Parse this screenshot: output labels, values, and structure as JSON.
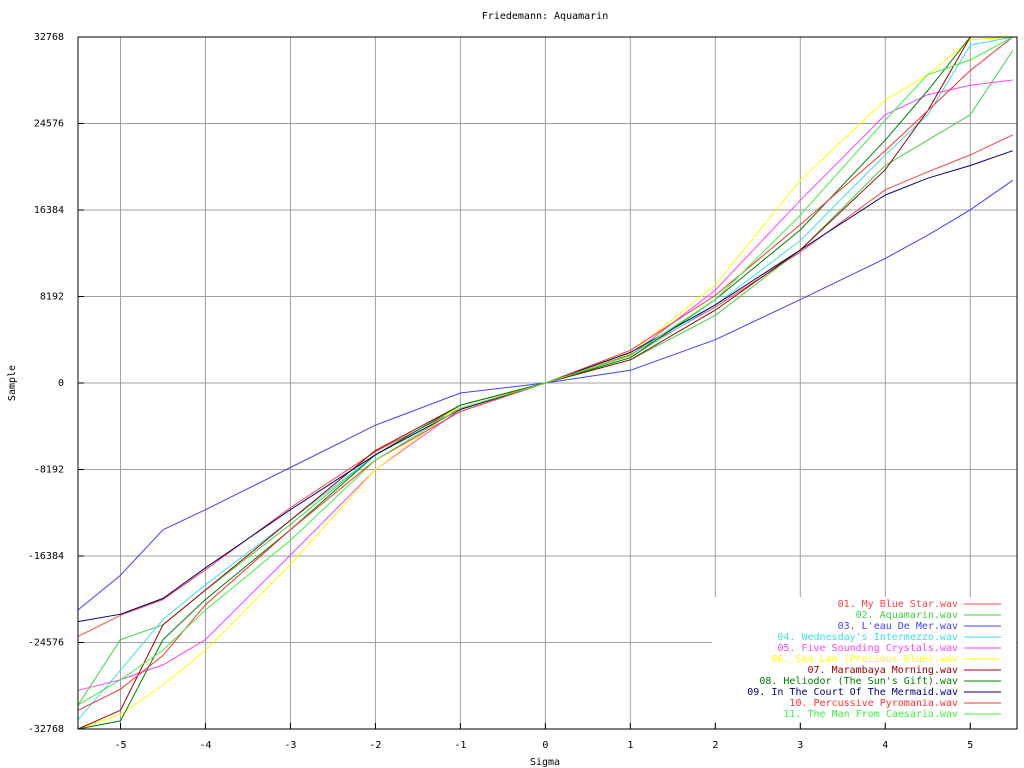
{
  "chart_data": {
    "type": "line",
    "title": "Friedemann: Aquamarin",
    "x_label": "Sigma",
    "y_label": "Sample",
    "x": [
      -5.5,
      -5,
      -4.5,
      -4,
      -3,
      -2,
      -1,
      0,
      1,
      2,
      3,
      4,
      4.5,
      5,
      5.5
    ],
    "xlim": [
      -5.5,
      5.55
    ],
    "xticks": [
      -5,
      -4,
      -3,
      -2,
      -1,
      0,
      1,
      2,
      3,
      4,
      5
    ],
    "ylim": [
      -32768,
      32768
    ],
    "yticks": [
      -32768,
      -24576,
      -16384,
      -8192,
      0,
      8192,
      16384,
      24576,
      32768
    ],
    "grid": true,
    "legend": "bottom right",
    "series": [
      {
        "name": "01. My Blue Star.wav",
        "color": "#ff4040",
        "values": [
          -24000,
          -22000,
          -20500,
          -17700,
          -11800,
          -6500,
          -2400,
          0,
          2700,
          7200,
          12400,
          18300,
          20000,
          21600,
          23500
        ]
      },
      {
        "name": "02. Aquamarin.wav",
        "color": "#40d040",
        "values": [
          -30500,
          -24300,
          -22900,
          -19600,
          -13400,
          -6800,
          -2100,
          0,
          2200,
          6400,
          12600,
          20600,
          23000,
          25400,
          31500
        ]
      },
      {
        "name": "03. L'eau De Mer.wav",
        "color": "#4040ff",
        "values": [
          -21500,
          -18200,
          -13900,
          -12000,
          -8000,
          -4000,
          -950,
          0,
          1200,
          4100,
          7900,
          11800,
          14000,
          16400,
          19200
        ]
      },
      {
        "name": "04. Wednesday's Intermezzo.wav",
        "color": "#40e0e0",
        "values": [
          -31900,
          -27200,
          -22400,
          -19100,
          -13000,
          -6800,
          -2100,
          0,
          2400,
          7400,
          13500,
          21600,
          25400,
          32000,
          32768
        ]
      },
      {
        "name": "05. Five Sounding Crystals.wav",
        "color": "#ff40ff",
        "values": [
          -29100,
          -28100,
          -26700,
          -24300,
          -16300,
          -8200,
          -2500,
          0,
          2600,
          8800,
          17300,
          25400,
          27300,
          28200,
          28700
        ]
      },
      {
        "name": "06. Sea Lan (Precious Blue).wav",
        "color": "#ffff00",
        "values": [
          -32768,
          -31400,
          -28600,
          -25300,
          -17200,
          -8200,
          -2100,
          0,
          2800,
          9300,
          19200,
          26800,
          29200,
          32500,
          32768
        ]
      },
      {
        "name": "07. Marambaya Morning.wav",
        "color": "#a00000",
        "values": [
          -32768,
          -31000,
          -22900,
          -19600,
          -13000,
          -6400,
          -2100,
          0,
          2200,
          6900,
          12600,
          20200,
          25800,
          32768,
          32768
        ]
      },
      {
        "name": "08. Heliodor (The Sun's Gift).wav",
        "color": "#008000",
        "values": [
          -32768,
          -32000,
          -24300,
          -20500,
          -13900,
          -6800,
          -2100,
          0,
          2400,
          7900,
          14500,
          23000,
          27700,
          32768,
          32768
        ]
      },
      {
        "name": "09. In The Court Of The Mermaid.wav",
        "color": "#000080",
        "values": [
          -22600,
          -21900,
          -20400,
          -17500,
          -12000,
          -6800,
          -2500,
          0,
          2900,
          7400,
          12600,
          17800,
          19400,
          20600,
          22000
        ]
      },
      {
        "name": "10. Percussive Pyromania.wav",
        "color": "#ff3030",
        "values": [
          -31000,
          -29000,
          -25800,
          -21000,
          -13900,
          -7300,
          -2700,
          0,
          3100,
          8300,
          15000,
          22000,
          25800,
          29600,
          32768
        ]
      },
      {
        "name": "11. The Man From Caesaria.wav",
        "color": "#40f040",
        "values": [
          -30500,
          -28100,
          -25300,
          -21500,
          -14900,
          -7300,
          -2400,
          0,
          2600,
          7900,
          15900,
          24900,
          29200,
          30600,
          32768
        ]
      }
    ]
  }
}
